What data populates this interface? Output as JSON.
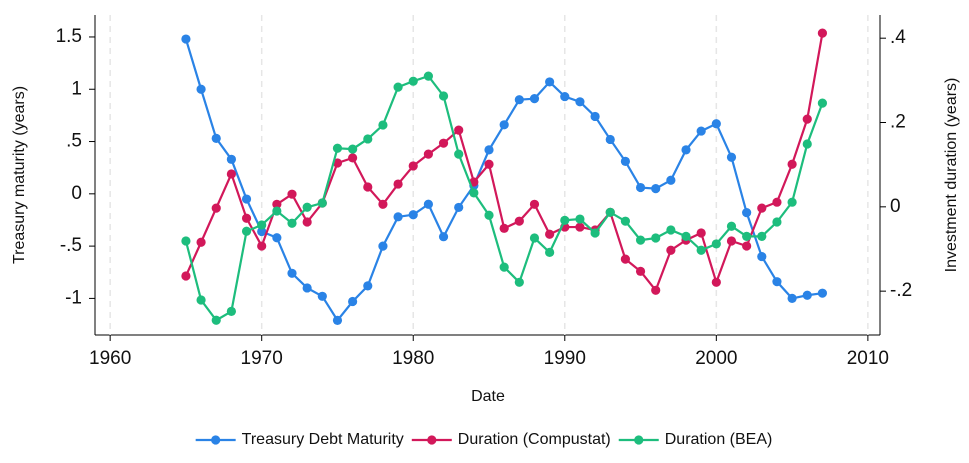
{
  "chart_data": {
    "type": "line",
    "xlabel": "Date",
    "ylabel": "Treasury maturity (years)",
    "y2label": "Investment duration (years)",
    "x": [
      1965,
      1966,
      1967,
      1968,
      1969,
      1970,
      1971,
      1972,
      1973,
      1974,
      1975,
      1976,
      1977,
      1978,
      1979,
      1980,
      1981,
      1982,
      1983,
      1984,
      1985,
      1986,
      1987,
      1988,
      1989,
      1990,
      1991,
      1992,
      1993,
      1994,
      1995,
      1996,
      1997,
      1998,
      1999,
      2000,
      2001,
      2002,
      2003,
      2004,
      2005,
      2006,
      2007
    ],
    "series": [
      {
        "name": "Treasury Debt Maturity",
        "color": "#2a83e6",
        "axis": "y",
        "values": [
          1.48,
          1.0,
          0.53,
          0.33,
          -0.05,
          -0.36,
          -0.42,
          -0.76,
          -0.9,
          -0.98,
          -1.21,
          -1.03,
          -0.88,
          -0.5,
          -0.22,
          -0.2,
          -0.1,
          -0.41,
          -0.13,
          0.08,
          0.42,
          0.66,
          0.9,
          0.91,
          1.07,
          0.93,
          0.88,
          0.74,
          0.52,
          0.31,
          0.06,
          0.05,
          0.13,
          0.42,
          0.6,
          0.67,
          0.35,
          -0.18,
          -0.6,
          -0.84,
          -1.0,
          -0.97,
          -0.95
        ]
      },
      {
        "name": "Duration (Compustat)",
        "color": "#d2185a",
        "axis": "y2",
        "values": [
          -0.164,
          -0.084,
          -0.003,
          0.078,
          -0.027,
          -0.093,
          0.006,
          0.03,
          -0.036,
          0.009,
          0.104,
          0.116,
          0.047,
          0.006,
          0.054,
          0.097,
          0.125,
          0.151,
          0.182,
          0.059,
          0.101,
          -0.051,
          -0.034,
          0.006,
          -0.065,
          -0.048,
          -0.048,
          -0.055,
          -0.013,
          -0.124,
          -0.153,
          -0.198,
          -0.103,
          -0.079,
          -0.062,
          -0.179,
          -0.081,
          -0.093,
          -0.003,
          0.011,
          0.101,
          0.208,
          0.412
        ]
      },
      {
        "name": "Duration (BEA)",
        "color": "#1dbd7d",
        "axis": "y2",
        "values": [
          -0.081,
          -0.221,
          -0.269,
          -0.248,
          -0.058,
          -0.043,
          -0.01,
          -0.039,
          -0.001,
          0.009,
          0.139,
          0.137,
          0.161,
          0.194,
          0.284,
          0.298,
          0.31,
          0.263,
          0.125,
          0.033,
          -0.02,
          -0.143,
          -0.179,
          -0.074,
          -0.108,
          -0.032,
          -0.029,
          -0.062,
          -0.013,
          -0.034,
          -0.079,
          -0.074,
          -0.055,
          -0.07,
          -0.103,
          -0.088,
          -0.046,
          -0.07,
          -0.07,
          -0.036,
          0.011,
          0.149,
          0.246
        ]
      }
    ],
    "xlim": [
      1959,
      2010.8
    ],
    "xticks": [
      1960,
      1970,
      1980,
      1990,
      2000,
      2010
    ],
    "ylim": [
      -1.35,
      1.71
    ],
    "yticks": [
      {
        "value": 1.5,
        "label": "1.5"
      },
      1,
      {
        "value": 0.5,
        "label": ".5"
      },
      0,
      {
        "value": -0.5,
        "label": "-.5"
      },
      -1
    ],
    "y2lim": [
      -0.304,
      0.455
    ],
    "y2ticks": [
      {
        "value": 0.4,
        "label": ".4"
      },
      {
        "value": 0.2,
        "label": ".2"
      },
      0,
      {
        "value": -0.2,
        "label": "-.2"
      }
    ],
    "grid": true,
    "legend": "bottom"
  }
}
